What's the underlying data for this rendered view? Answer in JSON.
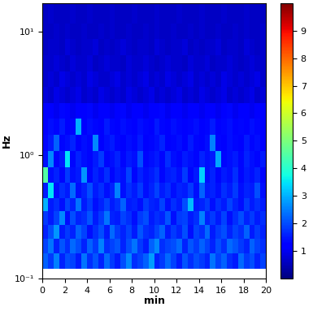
{
  "chart_data": {
    "type": "heatmap",
    "x_label": "min",
    "y_label": "Hz",
    "xlim": [
      0,
      20
    ],
    "xticks": [
      0,
      2,
      4,
      6,
      8,
      10,
      12,
      14,
      16,
      18,
      20
    ],
    "ylim": [
      0.1,
      17
    ],
    "yticks": [
      {
        "value": 0.1,
        "label": "10⁻¹"
      },
      {
        "value": 1,
        "label": "10⁰"
      },
      {
        "value": 10,
        "label": "10¹"
      }
    ],
    "log": "y",
    "color": "jet",
    "x_edges": [
      0,
      0.5,
      1,
      1.5,
      2,
      2.5,
      3,
      3.5,
      4,
      4.5,
      5,
      5.5,
      6,
      6.5,
      7,
      7.5,
      8,
      8.5,
      9,
      9.5,
      10,
      10.5,
      11,
      11.5,
      12,
      12.5,
      13,
      13.5,
      14,
      14.5,
      15,
      15.5,
      16,
      16.5,
      17,
      17.5,
      18,
      18.5,
      19,
      19.5,
      20
    ],
    "y_edges": [
      0.12,
      0.16,
      0.21,
      0.27,
      0.35,
      0.45,
      0.6,
      0.8,
      1.08,
      1.45,
      1.96,
      2.63,
      3.55,
      4.77,
      6.43,
      8.65,
      11.6,
      17
    ],
    "cells": [
      [
        2.2,
        1.8,
        2.5,
        1.6,
        2.0,
        1.9,
        1.5,
        2.4,
        1.7,
        2.1,
        1.6,
        2.3,
        1.8,
        1.5,
        2.0,
        2.6,
        1.7,
        1.9,
        2.2,
        2.8,
        1.6,
        1.8,
        2.3,
        1.9,
        1.5,
        2.1,
        1.7,
        2.0,
        1.8,
        1.6,
        2.4,
        1.9,
        2.2,
        1.7,
        1.5,
        2.3,
        1.8,
        2.0,
        1.6,
        1.9
      ],
      [
        1.9,
        2.4,
        1.6,
        2.1,
        1.7,
        2.3,
        2.0,
        1.6,
        2.2,
        1.8,
        2.5,
        1.7,
        1.9,
        2.1,
        1.6,
        2.0,
        2.4,
        1.8,
        1.5,
        2.2,
        2.6,
        1.7,
        1.9,
        2.0,
        2.3,
        1.6,
        2.1,
        1.8,
        2.2,
        1.9,
        1.6,
        2.0,
        1.7,
        2.3,
        2.1,
        1.8,
        1.6,
        2.2,
        1.9,
        1.7
      ],
      [
        1.6,
        2.0,
        2.7,
        1.5,
        1.8,
        1.6,
        2.2,
        1.9,
        1.4,
        1.7,
        2.0,
        1.5,
        2.3,
        1.8,
        1.6,
        1.9,
        1.5,
        2.1,
        1.7,
        1.6,
        1.9,
        2.2,
        1.5,
        1.8,
        1.6,
        2.0,
        1.4,
        1.9,
        1.7,
        2.3,
        1.5,
        1.8,
        2.0,
        1.6,
        1.9,
        1.7,
        2.2,
        1.5,
        1.8,
        1.6
      ],
      [
        1.8,
        1.5,
        1.9,
        2.6,
        1.4,
        2.0,
        1.6,
        1.7,
        2.1,
        1.5,
        1.8,
        2.4,
        1.6,
        1.5,
        1.9,
        1.7,
        1.4,
        1.8,
        2.0,
        1.5,
        1.7,
        1.6,
        2.1,
        1.4,
        1.8,
        1.9,
        1.5,
        1.7,
        2.5,
        1.6,
        1.8,
        1.5,
        1.9,
        1.4,
        1.7,
        2.0,
        1.6,
        1.8,
        1.5,
        1.7
      ],
      [
        3.0,
        1.5,
        1.7,
        1.4,
        1.9,
        1.6,
        2.4,
        1.5,
        1.8,
        1.4,
        1.6,
        1.9,
        1.5,
        1.7,
        2.2,
        1.5,
        1.6,
        1.4,
        1.8,
        1.6,
        1.5,
        1.9,
        1.4,
        1.7,
        1.5,
        2.0,
        3.1,
        1.5,
        1.6,
        1.8,
        1.4,
        1.7,
        1.5,
        1.9,
        1.6,
        1.4,
        1.8,
        1.5,
        1.7,
        1.5
      ],
      [
        1.5,
        3.5,
        1.4,
        1.7,
        1.5,
        2.3,
        1.4,
        1.6,
        2.0,
        1.5,
        1.7,
        1.4,
        1.6,
        2.5,
        1.4,
        1.7,
        1.5,
        1.8,
        1.4,
        1.6,
        1.9,
        1.5,
        1.7,
        1.4,
        1.6,
        1.5,
        1.8,
        1.4,
        2.2,
        1.5,
        1.6,
        1.4,
        1.7,
        1.5,
        1.8,
        1.4,
        1.6,
        1.5,
        2.0,
        1.4
      ],
      [
        4.5,
        1.4,
        1.6,
        1.3,
        1.8,
        1.4,
        1.5,
        2.7,
        1.3,
        1.6,
        1.4,
        1.7,
        1.3,
        1.5,
        1.4,
        1.9,
        1.3,
        1.6,
        1.4,
        1.5,
        1.7,
        1.3,
        1.5,
        1.6,
        1.4,
        1.8,
        1.3,
        1.5,
        3.3,
        1.4,
        1.6,
        1.3,
        1.5,
        1.4,
        1.7,
        1.3,
        1.5,
        1.4,
        1.6,
        1.3
      ],
      [
        1.4,
        2.6,
        1.3,
        1.5,
        3.5,
        1.3,
        1.6,
        1.4,
        1.3,
        1.5,
        1.8,
        1.3,
        1.4,
        1.6,
        1.3,
        1.5,
        1.4,
        2.0,
        1.3,
        1.4,
        1.5,
        1.3,
        1.7,
        1.4,
        1.3,
        1.5,
        1.4,
        1.3,
        1.6,
        1.4,
        1.5,
        2.9,
        1.3,
        1.4,
        1.5,
        1.3,
        1.6,
        1.4,
        1.3,
        1.5
      ],
      [
        1.3,
        1.5,
        2.2,
        1.3,
        1.4,
        1.6,
        1.2,
        1.4,
        1.3,
        2.6,
        1.2,
        1.4,
        1.5,
        1.3,
        1.2,
        1.4,
        1.3,
        1.5,
        1.2,
        1.3,
        1.4,
        1.6,
        1.2,
        1.3,
        1.4,
        1.2,
        1.5,
        1.3,
        1.2,
        1.4,
        2.5,
        1.3,
        1.2,
        1.4,
        1.3,
        1.2,
        1.5,
        1.3,
        1.4,
        1.2
      ],
      [
        1.2,
        1.4,
        1.3,
        1.5,
        1.2,
        1.3,
        3.0,
        1.2,
        1.4,
        1.3,
        1.2,
        1.5,
        1.3,
        1.2,
        1.4,
        1.3,
        1.2,
        1.4,
        1.3,
        1.2,
        1.5,
        1.3,
        1.2,
        1.4,
        1.3,
        1.2,
        1.3,
        1.4,
        1.2,
        1.3,
        1.5,
        1.2,
        1.3,
        1.4,
        1.2,
        1.3,
        1.2,
        1.4,
        1.3,
        1.2
      ],
      [
        1.1,
        1.2,
        1.0,
        1.3,
        1.1,
        1.0,
        1.2,
        1.1,
        1.3,
        1.0,
        1.1,
        1.2,
        1.0,
        1.1,
        1.3,
        1.0,
        1.2,
        1.1,
        1.0,
        1.2,
        1.1,
        1.3,
        1.0,
        1.1,
        1.2,
        1.0,
        1.1,
        1.2,
        1.0,
        1.1,
        1.2,
        1.0,
        1.1,
        1.3,
        1.0,
        1.1,
        1.2,
        1.0,
        1.1,
        1.2
      ],
      [
        0.8,
        0.7,
        0.9,
        0.8,
        0.7,
        0.8,
        0.9,
        0.7,
        0.8,
        0.7,
        0.9,
        0.8,
        0.7,
        0.8,
        0.7,
        0.9,
        0.8,
        0.7,
        0.8,
        0.9,
        0.7,
        0.8,
        0.7,
        0.8,
        0.9,
        0.7,
        0.8,
        0.7,
        0.9,
        0.8,
        0.7,
        0.8,
        0.9,
        0.7,
        0.8,
        0.7,
        0.8,
        0.9,
        0.7,
        0.8
      ],
      [
        0.7,
        0.8,
        0.7,
        0.9,
        0.8,
        0.7,
        0.8,
        0.7,
        0.9,
        0.8,
        0.7,
        0.7,
        0.8,
        0.9,
        0.7,
        0.8,
        0.7,
        0.8,
        0.9,
        0.7,
        0.8,
        0.7,
        0.9,
        0.8,
        0.7,
        0.8,
        0.9,
        0.7,
        0.8,
        0.7,
        0.8,
        0.7,
        0.9,
        0.8,
        0.7,
        0.8,
        0.7,
        0.8,
        0.9,
        0.7
      ],
      [
        0.7,
        0.7,
        0.8,
        0.7,
        0.6,
        0.8,
        0.7,
        0.7,
        0.8,
        0.6,
        0.7,
        0.8,
        0.7,
        0.7,
        0.6,
        0.8,
        0.7,
        0.7,
        0.8,
        0.7,
        0.6,
        0.7,
        0.8,
        0.7,
        0.7,
        0.6,
        0.8,
        0.7,
        0.7,
        0.8,
        0.6,
        0.7,
        0.7,
        0.8,
        0.7,
        0.6,
        0.7,
        0.8,
        0.7,
        0.7
      ],
      [
        0.6,
        0.7,
        0.7,
        0.6,
        0.8,
        0.7,
        0.6,
        0.7,
        0.7,
        0.8,
        0.6,
        0.7,
        0.6,
        0.7,
        0.8,
        0.7,
        0.6,
        0.7,
        0.7,
        0.6,
        0.8,
        0.7,
        0.6,
        0.7,
        0.7,
        0.8,
        0.6,
        0.7,
        0.6,
        0.7,
        0.7,
        0.8,
        0.6,
        0.7,
        0.7,
        0.6,
        0.8,
        0.7,
        0.6,
        0.7
      ],
      [
        0.6,
        0.6,
        0.7,
        0.6,
        0.7,
        0.6,
        0.6,
        0.7,
        0.6,
        0.6,
        0.7,
        0.6,
        0.7,
        0.6,
        0.6,
        0.7,
        0.6,
        0.6,
        0.7,
        0.6,
        0.7,
        0.6,
        0.6,
        0.7,
        0.6,
        0.6,
        0.7,
        0.6,
        0.7,
        0.6,
        0.6,
        0.7,
        0.6,
        0.6,
        0.7,
        0.6,
        0.7,
        0.6,
        0.6,
        0.7
      ],
      [
        0.6,
        0.7,
        0.6,
        0.6,
        0.6,
        0.7,
        0.6,
        0.6,
        0.7,
        0.6,
        0.6,
        0.6,
        0.7,
        0.6,
        0.6,
        0.6,
        0.7,
        0.6,
        0.6,
        0.6,
        0.7,
        0.6,
        0.6,
        0.6,
        0.7,
        0.6,
        0.6,
        0.6,
        0.7,
        0.6,
        0.6,
        0.6,
        0.7,
        0.6,
        0.6,
        0.6,
        0.7,
        0.6,
        0.6,
        0.6
      ]
    ],
    "colorbar_range": [
      0,
      10
    ],
    "colorbar_ticks": [
      1,
      2,
      3,
      4,
      5,
      6,
      7,
      8,
      9
    ]
  }
}
